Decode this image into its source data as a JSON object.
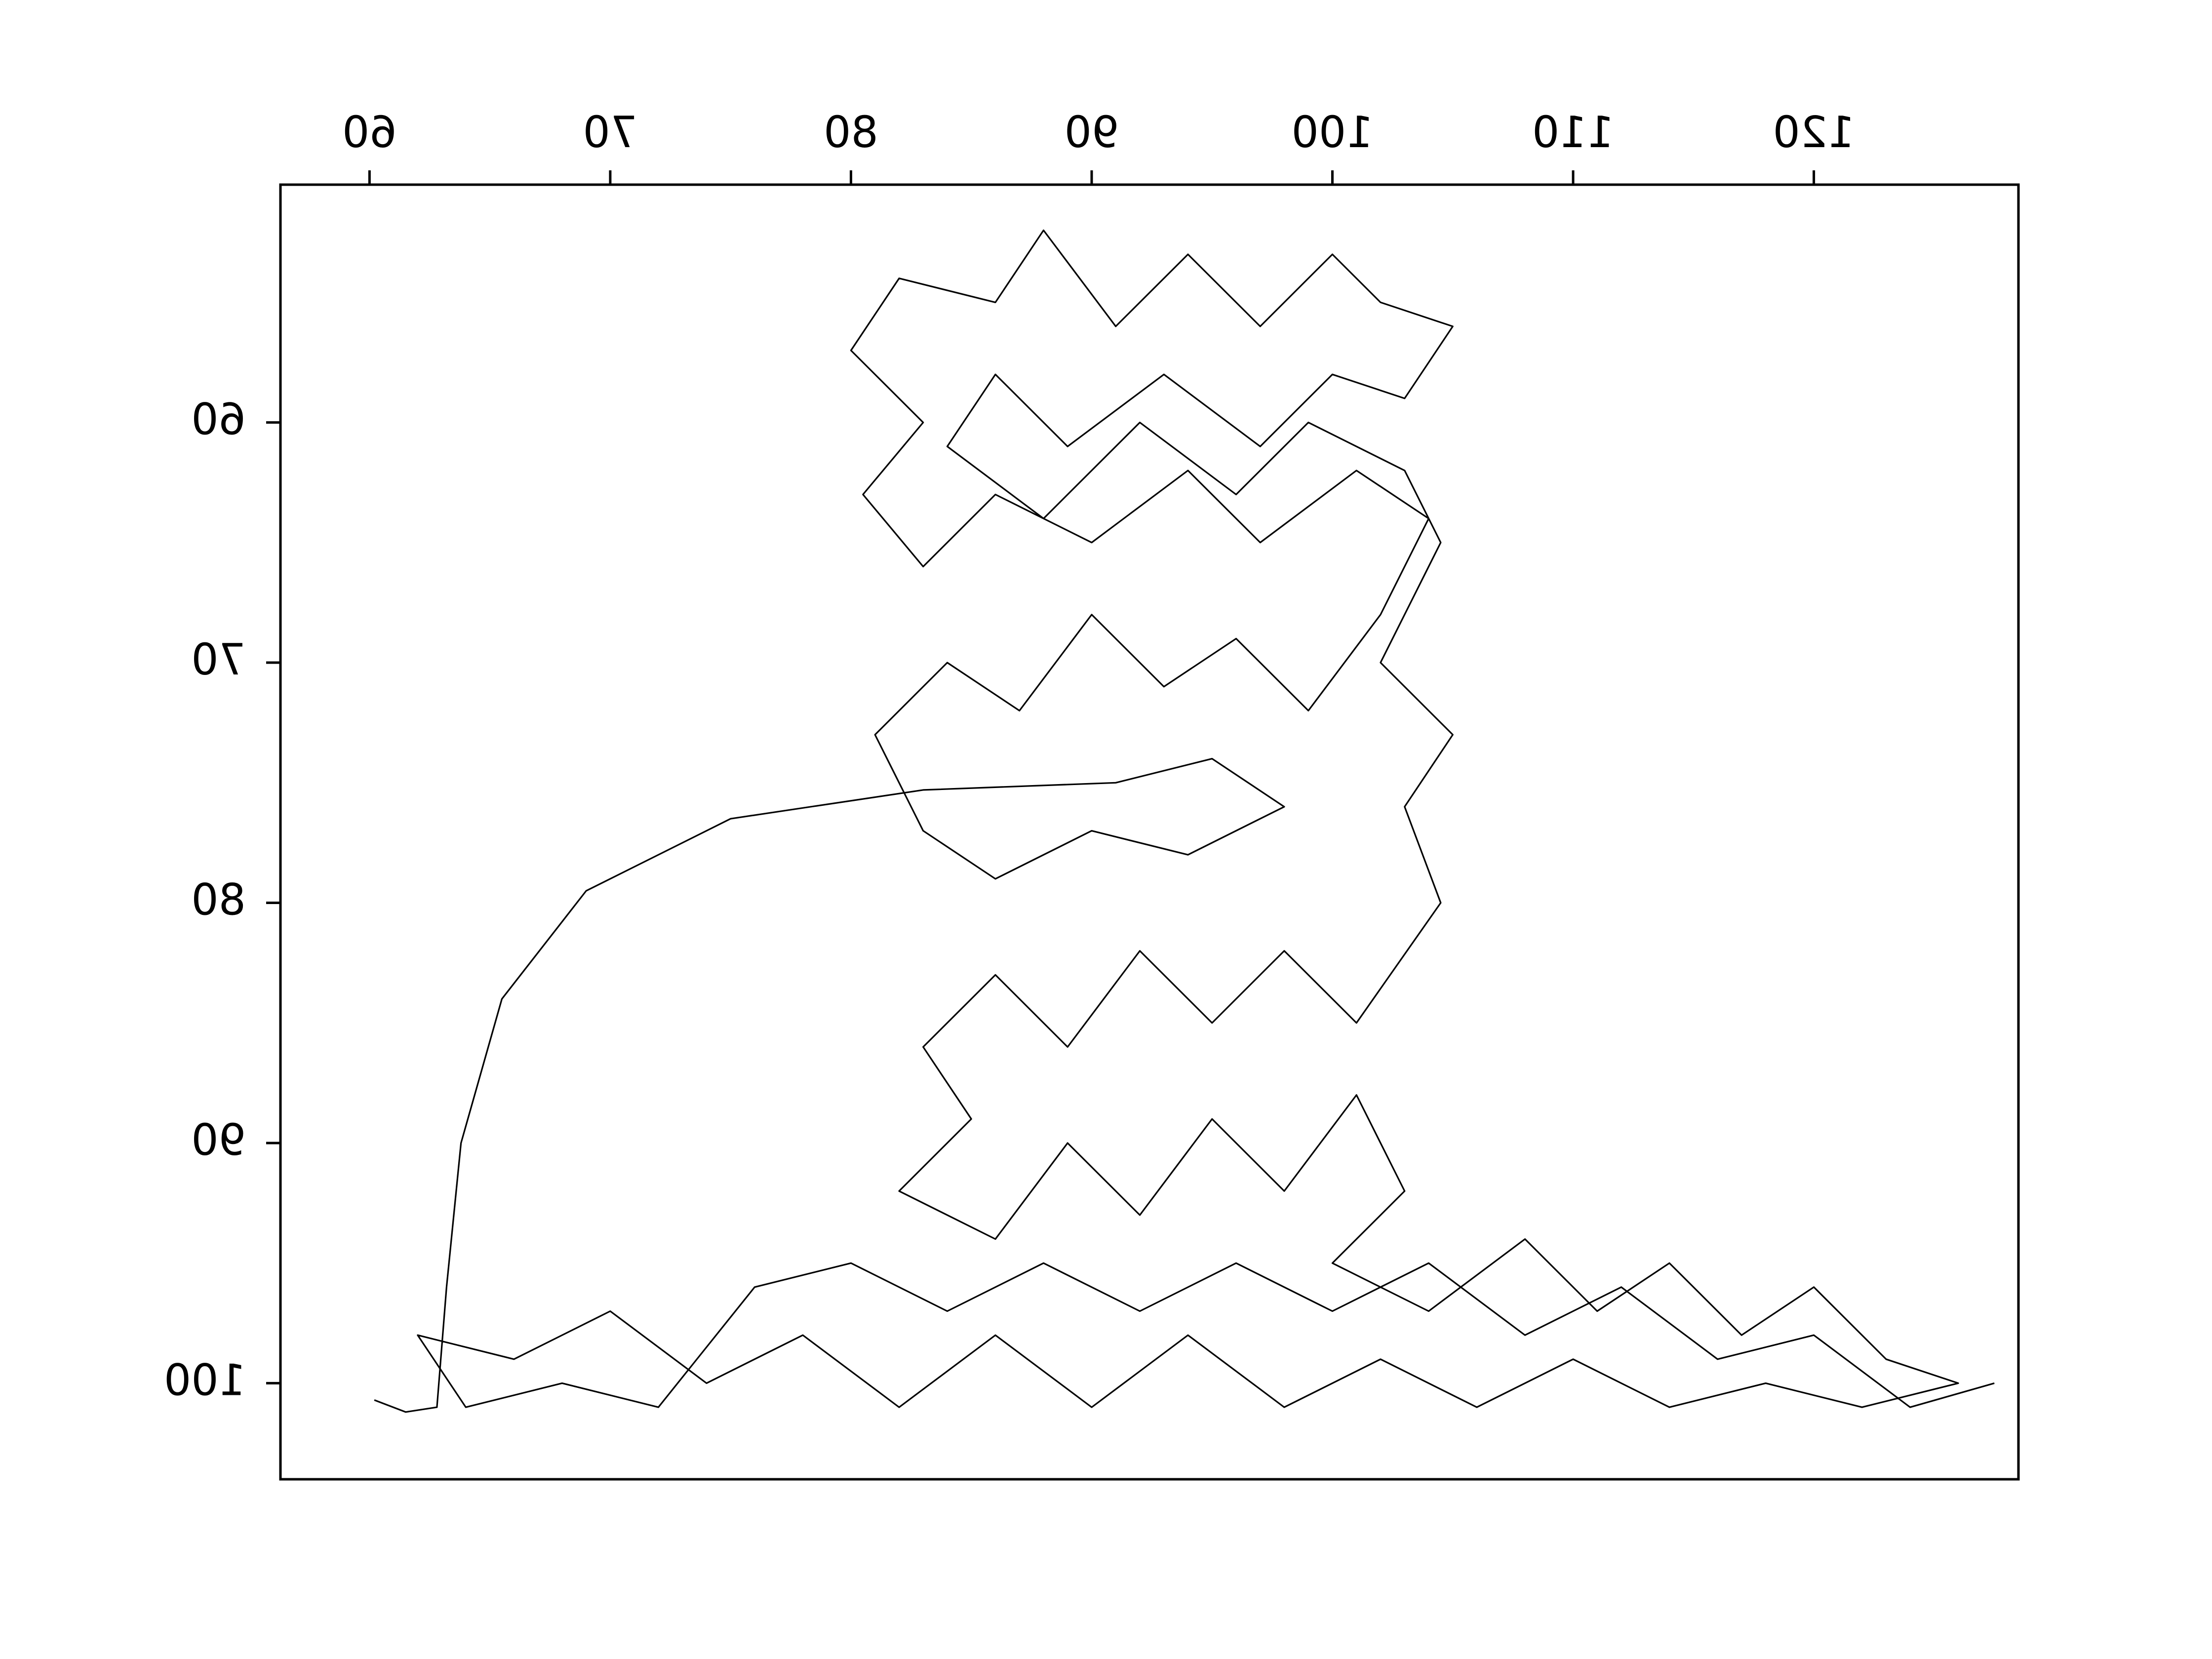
{
  "chart_data": {
    "type": "line",
    "series": [
      {
        "color": "#000000",
        "x": [
          60.2,
          61.5,
          62.8,
          63.2,
          63.8,
          65.5,
          69,
          75,
          83,
          91,
          95,
          98,
          94,
          90,
          86,
          83,
          81,
          84,
          87,
          90,
          93,
          96,
          99,
          102,
          104,
          101,
          97,
          94,
          90,
          86,
          83,
          80.5,
          83,
          80,
          82,
          86,
          88,
          91,
          94,
          97,
          100,
          102,
          105,
          103,
          100,
          97,
          93,
          89,
          86,
          84,
          88,
          92,
          96,
          99,
          103,
          104.5,
          102,
          105,
          103,
          104.5,
          101,
          98,
          95,
          92,
          89,
          86,
          83,
          85,
          82,
          86,
          89,
          92,
          95,
          98,
          101,
          103,
          100,
          104,
          108,
          111,
          114,
          117,
          120,
          123,
          126,
          122,
          118,
          114,
          110,
          106,
          102,
          98,
          94,
          90,
          86,
          82,
          78,
          74,
          70,
          66,
          62,
          64,
          68,
          72,
          76,
          80,
          84,
          88,
          92,
          96,
          100,
          104,
          108,
          112,
          116,
          120,
          124,
          127.5
        ],
        "values": [
          100.7,
          101.2,
          101,
          96,
          90,
          84,
          79.5,
          76.5,
          75.3,
          75,
          74,
          76,
          78,
          77,
          79,
          77,
          73,
          70,
          72,
          68,
          71,
          69,
          72,
          68,
          64,
          62,
          65,
          62,
          65,
          63,
          66,
          63,
          60,
          57,
          54,
          55,
          52,
          56,
          53,
          56,
          53,
          55,
          56,
          59,
          58,
          61,
          58,
          61,
          58,
          61,
          64,
          60,
          63,
          60,
          62,
          65,
          70,
          73,
          76,
          80,
          85,
          82,
          85,
          82,
          86,
          83,
          86,
          89,
          92,
          94,
          90,
          93,
          89,
          92,
          88,
          92,
          95,
          97,
          94,
          97,
          95,
          98,
          96,
          99,
          100,
          101,
          100,
          101,
          99,
          101,
          99,
          101,
          98,
          101,
          98,
          101,
          98,
          100,
          97,
          99,
          98,
          101,
          100,
          101,
          96,
          95,
          97,
          95,
          97,
          95,
          97,
          95,
          98,
          96,
          99,
          98,
          101,
          100
        ]
      }
    ],
    "xlim": [
      56.3,
      128.5
    ],
    "xticks": [
      60,
      70,
      80,
      90,
      100,
      110,
      120
    ],
    "ylim": [
      50.1,
      104
    ],
    "yticks": [
      60,
      70,
      80,
      90,
      100
    ],
    "y_inverted": true,
    "x_axis_position": "top",
    "mirrored_tick_labels": true,
    "grid": false
  }
}
